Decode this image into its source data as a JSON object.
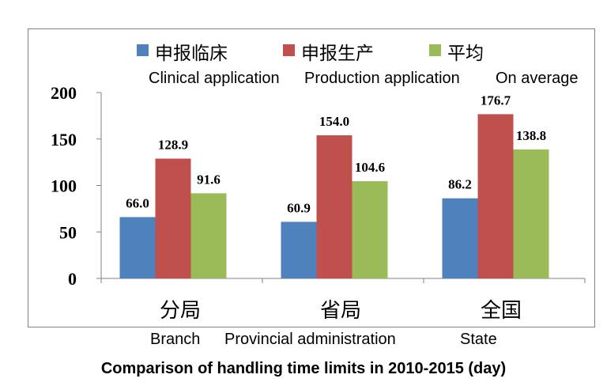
{
  "legend": {
    "cn": [
      "申报临床",
      "申报生产",
      "平均"
    ],
    "en": [
      "Clinical application",
      "Production application",
      "On average"
    ]
  },
  "categories_en": [
    "Branch",
    "Provincial administration",
    "State"
  ],
  "caption": "Comparison of handling time limits in 2010-2015 (day)",
  "colors": {
    "clinical": "#4f81bd",
    "production": "#c0504d",
    "average": "#9bbb59",
    "axis": "#808080"
  },
  "chart_data": {
    "type": "bar",
    "categories": [
      "分局",
      "省局",
      "全国"
    ],
    "series": [
      {
        "name": "申报临床",
        "values": [
          66.0,
          60.9,
          86.2
        ]
      },
      {
        "name": "申报生产",
        "values": [
          128.9,
          154.0,
          176.7
        ]
      },
      {
        "name": "平均",
        "values": [
          91.6,
          104.6,
          138.8
        ]
      }
    ],
    "ylim": [
      0,
      200
    ],
    "yticks": [
      0,
      50,
      100,
      150,
      200
    ],
    "grid": false,
    "legend_position": "top",
    "data_labels": [
      "66.0",
      "60.9",
      "86.2",
      "128.9",
      "154.0",
      "176.7",
      "91.6",
      "104.6",
      "138.8"
    ]
  }
}
